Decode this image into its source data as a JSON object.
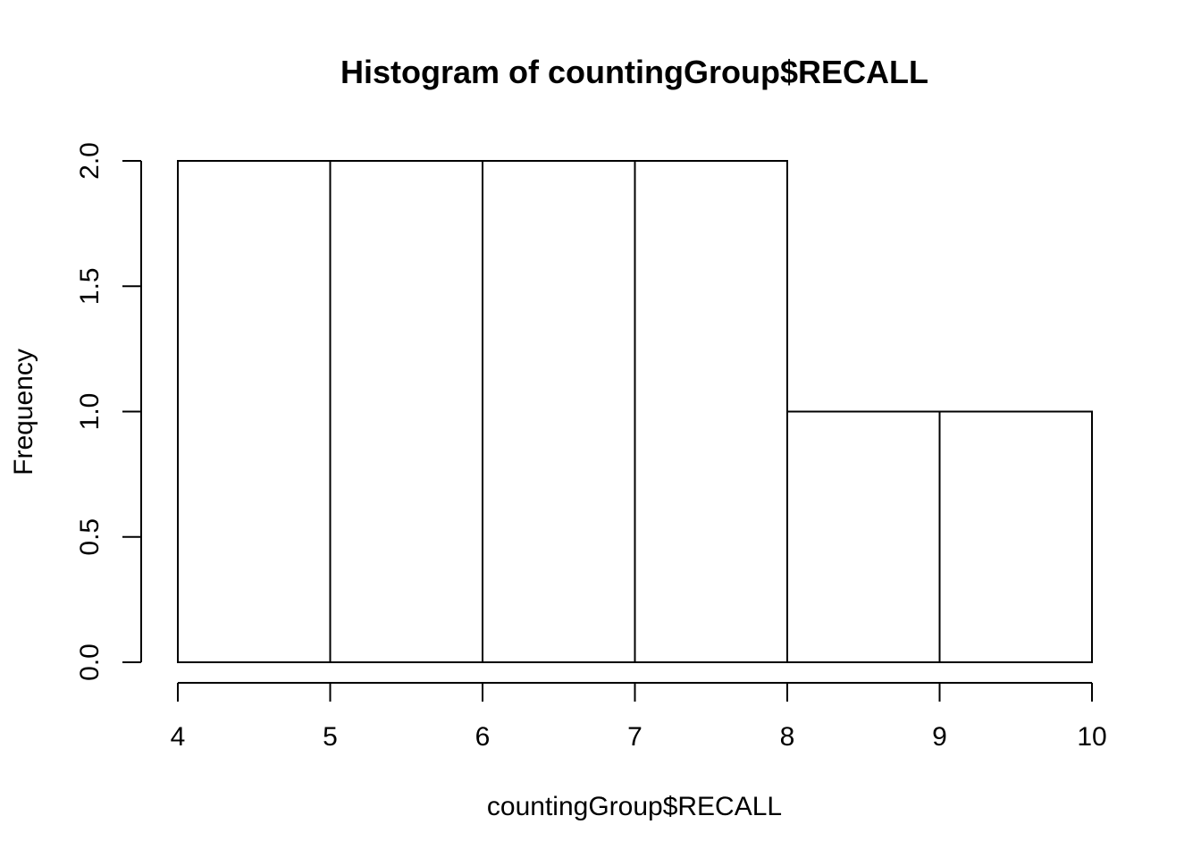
{
  "chart_data": {
    "type": "bar",
    "title": "Histogram of countingGroup$RECALL",
    "xlabel": "countingGroup$RECALL",
    "ylabel": "Frequency",
    "bins": [
      {
        "from": 4,
        "to": 5,
        "count": 2
      },
      {
        "from": 5,
        "to": 6,
        "count": 2
      },
      {
        "from": 6,
        "to": 7,
        "count": 2
      },
      {
        "from": 7,
        "to": 8,
        "count": 2
      },
      {
        "from": 8,
        "to": 9,
        "count": 1
      },
      {
        "from": 9,
        "to": 10,
        "count": 1
      }
    ],
    "xlim": [
      4,
      10
    ],
    "ylim": [
      0,
      2
    ],
    "x_ticks": [
      "4",
      "5",
      "6",
      "7",
      "8",
      "9",
      "10"
    ],
    "y_ticks": [
      "0.0",
      "0.5",
      "1.0",
      "1.5",
      "2.0"
    ],
    "grid": false,
    "bar_fill": "#ffffff",
    "bar_stroke": "#000000"
  }
}
